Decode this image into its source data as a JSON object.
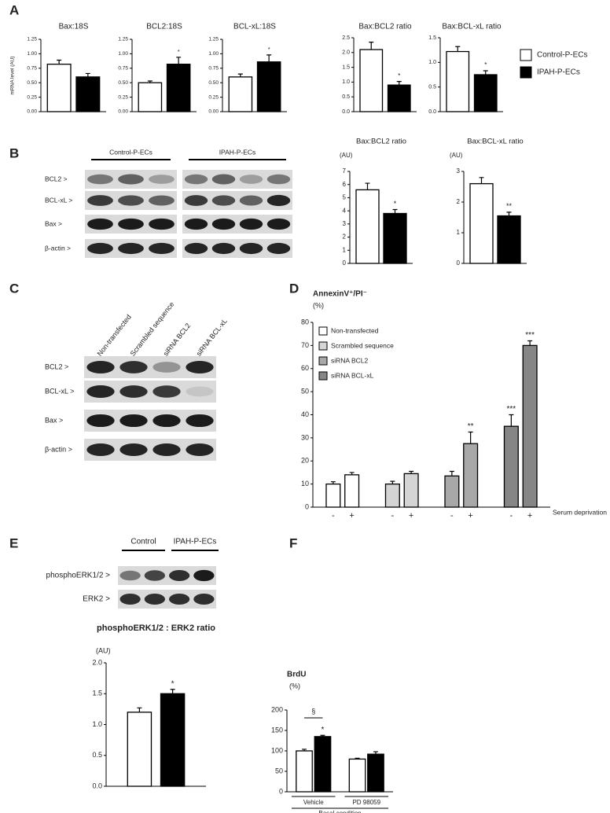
{
  "panel_labels": [
    "A",
    "B",
    "C",
    "D",
    "E",
    "F"
  ],
  "chart_data": [
    {
      "type": "bar",
      "title": "Bax:18S",
      "ylabel": "mRNA level (AU)",
      "ylim": [
        0,
        1.25
      ],
      "yticks": [
        {
          "value": 0,
          "label": "0.00"
        },
        {
          "value": 0.25,
          "label": "0.25"
        },
        {
          "value": 0.5,
          "label": "0.50"
        },
        {
          "value": 0.75,
          "label": "0.75"
        },
        {
          "value": 1,
          "label": "1.00"
        },
        {
          "value": 1.25,
          "label": "1.25"
        }
      ],
      "categories": [
        null
      ],
      "series": [
        {
          "name": "Control-P-ECs",
          "color": "#ffffff",
          "values": [
            0.82
          ],
          "errors": [
            0.07
          ],
          "significance": [
            null
          ]
        },
        {
          "name": "IPAH-P-ECs",
          "color": "#000000",
          "values": [
            0.6
          ],
          "errors": [
            0.06
          ],
          "significance": [
            null
          ]
        }
      ]
    },
    {
      "type": "bar",
      "title": "BCL2:18S",
      "ylim": [
        0,
        1.25
      ],
      "yticks": [
        {
          "value": 0,
          "label": "0.00"
        },
        {
          "value": 0.25,
          "label": "0.25"
        },
        {
          "value": 0.5,
          "label": "0.50"
        },
        {
          "value": 0.75,
          "label": "0.75"
        },
        {
          "value": 1,
          "label": "1.00"
        },
        {
          "value": 1.25,
          "label": "1.25"
        }
      ],
      "categories": [
        null
      ],
      "series": [
        {
          "color": "#ffffff",
          "values": [
            0.5
          ],
          "errors": [
            0.03
          ],
          "significance": [
            null
          ]
        },
        {
          "color": "#000000",
          "values": [
            0.82
          ],
          "errors": [
            0.12
          ],
          "significance": [
            "*"
          ]
        }
      ]
    },
    {
      "type": "bar",
      "title": "BCL-xL:18S",
      "ylim": [
        0,
        1.25
      ],
      "yticks": [
        {
          "value": 0,
          "label": "0.00"
        },
        {
          "value": 0.25,
          "label": "0.25"
        },
        {
          "value": 0.5,
          "label": "0.50"
        },
        {
          "value": 0.75,
          "label": "0.75"
        },
        {
          "value": 1,
          "label": "1.00"
        },
        {
          "value": 1.25,
          "label": "1.25"
        }
      ],
      "categories": [
        null
      ],
      "series": [
        {
          "color": "#ffffff",
          "values": [
            0.6
          ],
          "errors": [
            0.05
          ],
          "significance": [
            null
          ]
        },
        {
          "color": "#000000",
          "values": [
            0.86
          ],
          "errors": [
            0.12
          ],
          "significance": [
            "*"
          ]
        }
      ]
    },
    {
      "type": "bar",
      "title": "Bax:BCL2 ratio",
      "ylim": [
        0,
        2.5
      ],
      "yticks": [
        {
          "value": 0,
          "label": "0.0"
        },
        {
          "value": 0.5,
          "label": "0.5"
        },
        {
          "value": 1,
          "label": "1.0"
        },
        {
          "value": 1.5,
          "label": "1.5"
        },
        {
          "value": 2,
          "label": "2.0"
        },
        {
          "value": 2.5,
          "label": "2.5"
        }
      ],
      "categories": [
        null
      ],
      "series": [
        {
          "color": "#ffffff",
          "values": [
            2.1
          ],
          "errors": [
            0.25
          ],
          "significance": [
            null
          ]
        },
        {
          "color": "#000000",
          "values": [
            0.9
          ],
          "errors": [
            0.12
          ],
          "significance": [
            "*"
          ]
        }
      ]
    },
    {
      "type": "bar",
      "title": "Bax:BCL-xL ratio",
      "ylim": [
        0,
        1.5
      ],
      "yticks": [
        {
          "value": 0,
          "label": "0.0"
        },
        {
          "value": 0.5,
          "label": "0.5"
        },
        {
          "value": 1,
          "label": "1.0"
        },
        {
          "value": 1.5,
          "label": "1.5"
        }
      ],
      "categories": [
        null
      ],
      "series": [
        {
          "color": "#ffffff",
          "values": [
            1.22
          ],
          "errors": [
            0.1
          ],
          "significance": [
            null
          ]
        },
        {
          "color": "#000000",
          "values": [
            0.75
          ],
          "errors": [
            0.08
          ],
          "significance": [
            "*"
          ]
        }
      ]
    },
    {
      "type": "bar",
      "title": "Bax:BCL2 ratio",
      "ylabel": "(AU)",
      "ylim": [
        0,
        7
      ],
      "yticks": [
        0,
        1,
        2,
        3,
        4,
        5,
        6,
        7
      ],
      "categories": [
        null
      ],
      "series": [
        {
          "color": "#ffffff",
          "values": [
            5.6
          ],
          "errors": [
            0.5
          ],
          "significance": [
            null
          ]
        },
        {
          "color": "#000000",
          "values": [
            3.8
          ],
          "errors": [
            0.3
          ],
          "significance": [
            "*"
          ]
        }
      ]
    },
    {
      "type": "bar",
      "title": "Bax:BCL-xL ratio",
      "ylabel": "(AU)",
      "ylim": [
        0,
        3
      ],
      "yticks": [
        0,
        1,
        2,
        3
      ],
      "categories": [
        null
      ],
      "series": [
        {
          "color": "#ffffff",
          "values": [
            2.6
          ],
          "errors": [
            0.2
          ],
          "significance": [
            null
          ]
        },
        {
          "color": "#000000",
          "values": [
            1.55
          ],
          "errors": [
            0.12
          ],
          "significance": [
            "**"
          ]
        }
      ]
    },
    {
      "type": "bar",
      "title": "AnnexinV⁺/PI⁻",
      "ylabel": "(%)",
      "xlabel": "Serum deprivation",
      "ylim": [
        0,
        80
      ],
      "yticks": [
        0,
        10,
        20,
        30,
        40,
        50,
        60,
        70,
        80
      ],
      "categories": [
        "-",
        "+"
      ],
      "series": [
        {
          "name": "Non-transfected",
          "color": "#ffffff",
          "values": [
            10,
            14
          ],
          "errors": [
            1,
            1
          ],
          "significance": [
            null,
            null
          ]
        },
        {
          "name": "Scrambled sequence",
          "color": "#d4d4d4",
          "values": [
            10,
            14.5
          ],
          "errors": [
            1.2,
            1
          ],
          "significance": [
            null,
            null
          ]
        },
        {
          "name": "siRNA BCL2",
          "color": "#a8a8a8",
          "values": [
            13.5,
            27.5
          ],
          "errors": [
            2,
            5
          ],
          "significance": [
            null,
            "**"
          ]
        },
        {
          "name": "siRNA BCL-xL",
          "color": "#868686",
          "values": [
            35,
            70
          ],
          "errors": [
            5,
            2
          ],
          "significance": [
            "***",
            "***"
          ]
        }
      ]
    },
    {
      "type": "bar",
      "title": "phosphoERK1/2 : ERK2 ratio",
      "ylabel": "(AU)",
      "ylim": [
        0,
        2
      ],
      "yticks": [
        {
          "value": 0,
          "label": "0.0"
        },
        {
          "value": 0.5,
          "label": "0.5"
        },
        {
          "value": 1,
          "label": "1.0"
        },
        {
          "value": 1.5,
          "label": "1.5"
        },
        {
          "value": 2,
          "label": "2.0"
        }
      ],
      "categories": [
        null
      ],
      "series": [
        {
          "color": "#ffffff",
          "values": [
            1.2
          ],
          "errors": [
            0.07
          ],
          "significance": [
            null
          ]
        },
        {
          "color": "#000000",
          "values": [
            1.5
          ],
          "errors": [
            0.07
          ],
          "significance": [
            "*"
          ]
        }
      ]
    },
    {
      "type": "bar",
      "title": "BrdU",
      "ylabel": "(%)",
      "xlabel": "Basal condition",
      "bracket_label": "§",
      "ylim": [
        0,
        200
      ],
      "yticks": [
        0,
        50,
        100,
        150,
        200
      ],
      "categories": [
        "Vehicle",
        "PD 98059"
      ],
      "series": [
        {
          "color": "#ffffff",
          "values": [
            100,
            80
          ],
          "errors": [
            4,
            2
          ],
          "significance": [
            null,
            null
          ]
        },
        {
          "color": "#000000",
          "values": [
            135,
            92
          ],
          "errors": [
            3,
            6
          ],
          "significance": [
            "*",
            null
          ]
        }
      ]
    }
  ],
  "blots": [
    {
      "headers": [
        "Control-P-ECs",
        "IPAH-P-ECs"
      ],
      "rows": [
        "BCL2 >",
        "BCL-xL >",
        "Bax >",
        "β-actin >"
      ]
    },
    {
      "headers": [
        "Non-transfected",
        "Scrambled sequence",
        "siRNA BCL2",
        "siRNA BCL-xL"
      ],
      "rows": [
        "BCL2 >",
        "BCL-xL >",
        "Bax >",
        "β-actin >"
      ]
    },
    {
      "headers": [
        "Control",
        "IPAH-P-ECs"
      ],
      "rows": [
        "phosphoERK1/2 >",
        "ERK2 >"
      ]
    }
  ]
}
